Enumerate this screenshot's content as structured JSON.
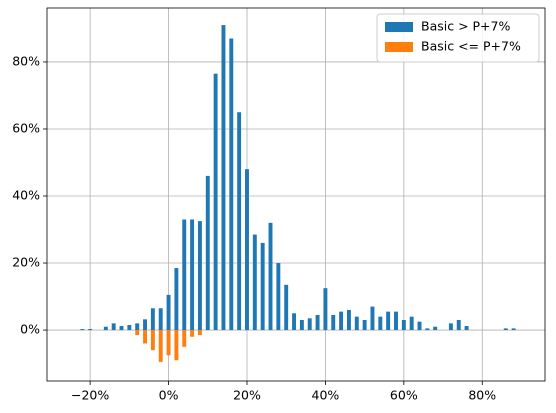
{
  "chart_data": {
    "type": "bar",
    "x": [
      -22,
      -20,
      -18,
      -16,
      -14,
      -12,
      -10,
      -8,
      -6,
      -4,
      -2,
      0,
      2,
      4,
      6,
      8,
      10,
      12,
      14,
      16,
      18,
      20,
      22,
      24,
      26,
      28,
      30,
      32,
      34,
      36,
      38,
      40,
      42,
      44,
      46,
      48,
      50,
      52,
      54,
      56,
      58,
      60,
      62,
      64,
      66,
      68,
      70,
      72,
      74,
      76,
      78,
      80,
      82,
      84,
      86,
      88
    ],
    "series": [
      {
        "name": "Basic > P+7%",
        "color": "#1f77b4",
        "values": [
          0.3,
          0.3,
          0,
          1,
          2,
          1.2,
          1.5,
          2,
          3.2,
          6.5,
          6.5,
          10.5,
          18.5,
          33,
          33,
          32.5,
          46,
          76.5,
          91,
          87,
          65,
          48,
          28.5,
          26,
          32,
          20,
          13.5,
          5,
          3,
          3.5,
          4.5,
          12.5,
          4.5,
          5.5,
          6,
          4,
          3,
          7,
          4,
          5.5,
          5.5,
          3,
          4,
          2.5,
          0.5,
          1,
          0,
          2,
          3,
          1.2,
          0,
          0,
          0,
          0,
          0.5,
          0.5
        ]
      },
      {
        "name": "Basic <= P+7%",
        "color": "#ff7f0e",
        "values": [
          null,
          null,
          null,
          null,
          null,
          null,
          null,
          -1.5,
          -4,
          -6,
          -9.5,
          -7.5,
          -9,
          -5,
          -2,
          -1.5,
          null,
          null,
          null,
          null,
          null,
          null,
          null,
          null,
          null,
          null,
          null,
          null,
          null,
          null,
          null,
          null,
          null,
          null,
          null,
          null,
          null,
          null,
          null,
          null,
          null,
          null,
          null,
          null,
          null,
          null,
          null,
          null,
          null,
          null,
          null,
          null,
          null,
          null,
          null,
          null
        ]
      }
    ],
    "bar_width": 1,
    "xlim": [
      -31,
      96
    ],
    "ylim": [
      -15.2,
      96.1
    ],
    "xticks": [
      {
        "value": -20,
        "label": "−20%"
      },
      {
        "value": 0,
        "label": "0%"
      },
      {
        "value": 20,
        "label": "20%"
      },
      {
        "value": 40,
        "label": "40%"
      },
      {
        "value": 60,
        "label": "60%"
      },
      {
        "value": 80,
        "label": "80%"
      }
    ],
    "yticks": [
      {
        "value": 0,
        "label": "0%"
      },
      {
        "value": 20,
        "label": "20%"
      },
      {
        "value": 40,
        "label": "40%"
      },
      {
        "value": 60,
        "label": "60%"
      },
      {
        "value": 80,
        "label": "80%"
      }
    ],
    "grid": true,
    "legend": "upper right"
  }
}
